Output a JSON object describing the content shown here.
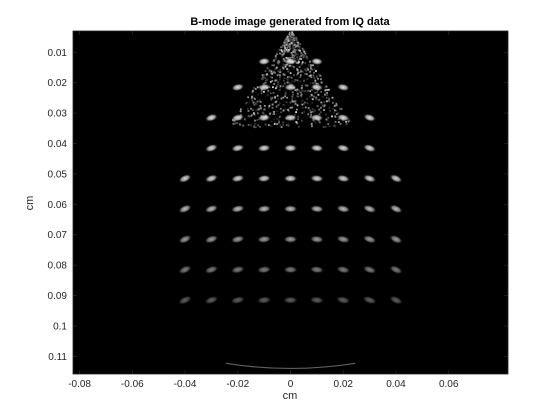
{
  "chart_data": {
    "type": "heatmap",
    "title": "B-mode image generated from IQ data",
    "xlabel": "cm",
    "ylabel": "cm",
    "xlim": [
      -0.0825,
      0.0825
    ],
    "ylim": [
      0.003,
      0.1158
    ],
    "y_direction": "reverse",
    "colormap": "gray",
    "grid": false,
    "x_ticks": [
      -0.08,
      -0.06,
      -0.04,
      -0.02,
      0,
      0.02,
      0.04,
      0.06
    ],
    "x_tick_labels": [
      "-0.08",
      "-0.06",
      "-0.04",
      "-0.02",
      "0",
      "0.02",
      "0.04",
      "0.06"
    ],
    "y_ticks": [
      0.01,
      0.02,
      0.03,
      0.04,
      0.05,
      0.06,
      0.07,
      0.08,
      0.09,
      0.1,
      0.11
    ],
    "y_tick_labels": [
      "0.01",
      "0.02",
      "0.03",
      "0.04",
      "0.05",
      "0.06",
      "0.07",
      "0.08",
      "0.09",
      "0.1",
      "0.11"
    ],
    "sector": {
      "apex": [
        0,
        0.0025
      ],
      "near_field_half_angle_deg": 37,
      "far_field_half_angle_deg": 45,
      "bottom_depth": 0.115
    },
    "scatterer_rows": [
      {
        "depth": 0.013,
        "x": [
          -0.01,
          0,
          0.01
        ],
        "intensity": 0.95
      },
      {
        "depth": 0.0215,
        "x": [
          -0.02,
          -0.01,
          0,
          0.01,
          0.02
        ],
        "intensity": 0.9
      },
      {
        "depth": 0.0315,
        "x": [
          -0.03,
          -0.02,
          -0.01,
          0,
          0.01,
          0.02,
          0.03
        ],
        "intensity": 0.9
      },
      {
        "depth": 0.0415,
        "x": [
          -0.03,
          -0.02,
          -0.01,
          0,
          0.01,
          0.02,
          0.03
        ],
        "intensity": 0.88
      },
      {
        "depth": 0.0515,
        "x": [
          -0.04,
          -0.03,
          -0.02,
          -0.01,
          0,
          0.01,
          0.02,
          0.03,
          0.04
        ],
        "intensity": 0.85
      },
      {
        "depth": 0.0615,
        "x": [
          -0.04,
          -0.03,
          -0.02,
          -0.01,
          0,
          0.01,
          0.02,
          0.03,
          0.04
        ],
        "intensity": 0.75
      },
      {
        "depth": 0.0715,
        "x": [
          -0.04,
          -0.03,
          -0.02,
          -0.01,
          0,
          0.01,
          0.02,
          0.03,
          0.04
        ],
        "intensity": 0.62
      },
      {
        "depth": 0.0815,
        "x": [
          -0.04,
          -0.03,
          -0.02,
          -0.01,
          0,
          0.01,
          0.02,
          0.03,
          0.04
        ],
        "intensity": 0.5
      },
      {
        "depth": 0.0915,
        "x": [
          -0.04,
          -0.03,
          -0.02,
          -0.01,
          0,
          0.01,
          0.02,
          0.03,
          0.04
        ],
        "intensity": 0.38
      }
    ],
    "background_color": "#000000",
    "foreground_color": "#ffffff"
  }
}
